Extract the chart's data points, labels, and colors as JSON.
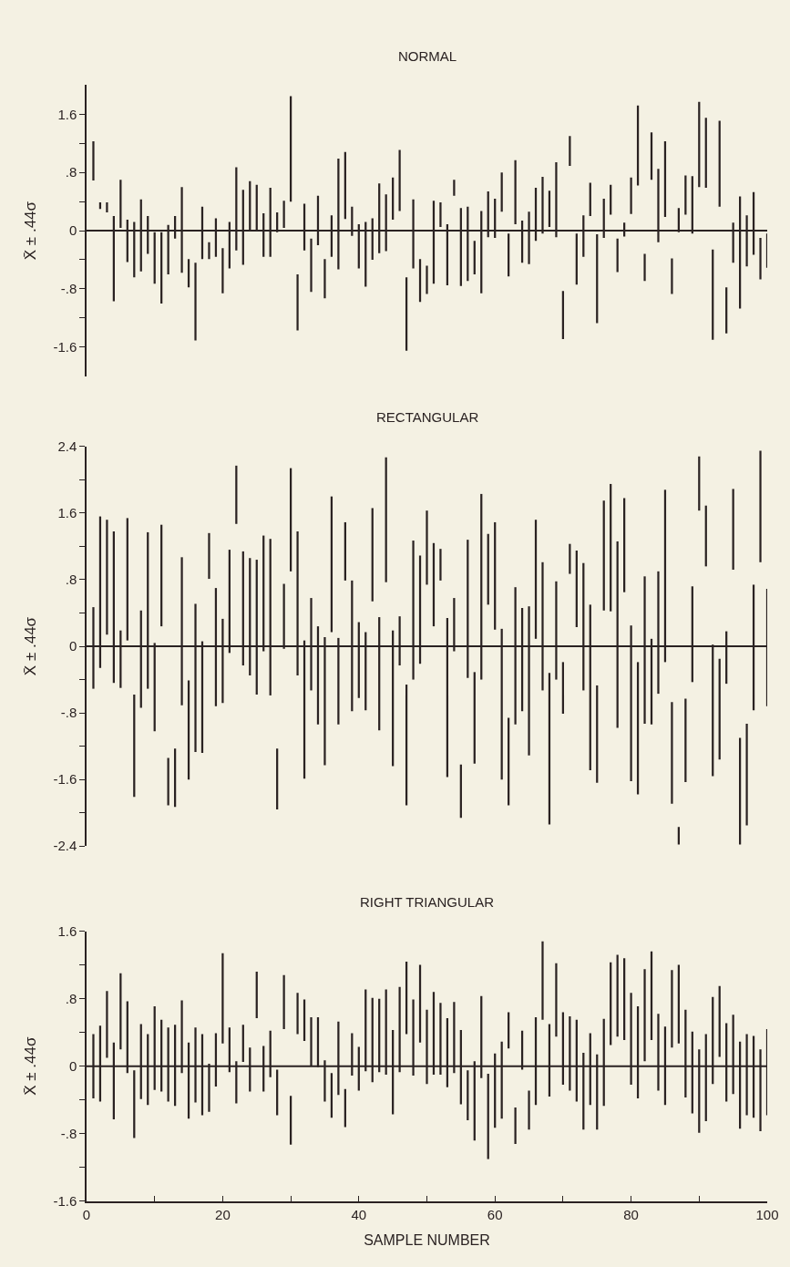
{
  "chart_data": [
    {
      "type": "bar",
      "title": "NORMAL",
      "ylabel": "X̄ ± .44σ",
      "color": "#2a2222",
      "tick_labels": "y",
      "xlim": [
        0,
        100
      ],
      "ylim": [
        -2.0,
        2.0
      ],
      "yticks": [
        {
          "value": -1.6,
          "label": "-1.6"
        },
        {
          "value": -1.2,
          "label": null
        },
        {
          "value": -0.8,
          "label": "-.8"
        },
        {
          "value": -0.4,
          "label": null
        },
        0,
        {
          "value": 0.4,
          "label": null
        },
        {
          "value": 0.8,
          "label": ".8"
        },
        {
          "value": 1.2,
          "label": null
        },
        {
          "value": 1.6,
          "label": "1.6"
        }
      ],
      "grid": false,
      "ref_lines": [
        {
          "axis": "y",
          "value": 0,
          "color": "#2a2222"
        }
      ],
      "x": [
        1,
        2,
        3,
        4,
        5,
        6,
        7,
        8,
        9,
        10,
        11,
        12,
        13,
        14,
        15,
        16,
        17,
        18,
        19,
        20,
        21,
        22,
        23,
        24,
        25,
        26,
        27,
        28,
        29,
        30,
        31,
        32,
        33,
        34,
        35,
        36,
        37,
        38,
        39,
        40,
        41,
        42,
        43,
        44,
        45,
        46,
        47,
        48,
        49,
        50,
        51,
        52,
        53,
        54,
        55,
        56,
        57,
        58,
        59,
        60,
        61,
        62,
        63,
        64,
        65,
        66,
        67,
        68,
        69,
        70,
        71,
        72,
        73,
        74,
        75,
        76,
        77,
        78,
        79,
        80,
        81,
        82,
        83,
        84,
        85,
        86,
        87,
        88,
        89,
        90,
        91,
        92,
        93,
        94,
        95,
        96,
        97,
        98,
        99,
        100
      ],
      "base": [
        0.69,
        0.3,
        0.25,
        -0.97,
        0.04,
        -0.43,
        -0.64,
        -0.56,
        -0.32,
        -0.73,
        -1.0,
        -0.6,
        -0.11,
        -0.58,
        -0.78,
        -1.51,
        -0.39,
        -0.39,
        -0.36,
        -0.86,
        -0.52,
        -0.27,
        -0.47,
        -0.01,
        -0.01,
        -0.36,
        -0.36,
        -0.02,
        0.04,
        0.4,
        -1.37,
        -0.27,
        -0.84,
        -0.2,
        -0.93,
        -0.36,
        -0.53,
        0.16,
        -0.07,
        -0.52,
        -0.77,
        -0.4,
        -0.31,
        -0.28,
        0.15,
        0.27,
        -1.65,
        -0.52,
        -0.98,
        -0.87,
        -0.73,
        0.05,
        -0.75,
        0.48,
        -0.76,
        -0.69,
        -0.6,
        -0.86,
        -0.09,
        -0.1,
        0.26,
        -0.63,
        0.09,
        -0.44,
        -0.46,
        -0.14,
        -0.04,
        0.05,
        -0.09,
        -1.49,
        0.89,
        -0.74,
        -0.36,
        0.2,
        -1.27,
        -0.1,
        0.22,
        -0.57,
        -0.08,
        0.23,
        0.62,
        -0.69,
        0.7,
        -0.16,
        0.19,
        -0.87,
        -0.02,
        0.22,
        -0.04,
        0.6,
        0.59,
        -1.5,
        0.33,
        -1.41,
        -0.44,
        -1.07,
        -0.49,
        -0.33,
        -0.67,
        -0.51
      ],
      "values": [
        0.54,
        0.09,
        0.14,
        1.17,
        0.66,
        0.58,
        0.76,
        0.99,
        0.52,
        0.71,
        0.98,
        0.68,
        0.31,
        1.18,
        0.39,
        1.07,
        0.72,
        0.23,
        0.53,
        0.62,
        0.64,
        1.14,
        1.03,
        0.69,
        0.64,
        0.6,
        0.95,
        0.27,
        0.37,
        1.45,
        0.77,
        0.64,
        0.73,
        0.68,
        0.54,
        0.57,
        1.52,
        0.92,
        0.4,
        0.61,
        0.89,
        0.57,
        0.96,
        0.78,
        0.58,
        0.84,
        1.01,
        0.95,
        0.59,
        0.39,
        1.14,
        0.34,
        0.84,
        0.22,
        1.07,
        1.02,
        0.46,
        1.13,
        0.63,
        0.54,
        0.54,
        0.59,
        0.88,
        0.58,
        0.72,
        0.73,
        0.78,
        0.5,
        1.03,
        0.66,
        0.41,
        0.7,
        0.57,
        0.46,
        1.22,
        0.54,
        0.41,
        0.46,
        0.19,
        0.5,
        1.1,
        0.37,
        0.65,
        1.01,
        1.04,
        0.49,
        0.33,
        0.54,
        0.79,
        1.17,
        0.96,
        1.24,
        1.18,
        0.63,
        0.55,
        1.54,
        0.7,
        0.86,
        0.57,
        0.47
      ]
    },
    {
      "type": "bar",
      "title": "RECTANGULAR",
      "ylabel": "X̄ ± .44σ",
      "color": "#2a2222",
      "tick_labels": "y",
      "xlim": [
        0,
        100
      ],
      "ylim": [
        -2.4,
        2.4
      ],
      "yticks": [
        {
          "value": -2.4,
          "label": "-2.4"
        },
        {
          "value": -2.0,
          "label": null
        },
        {
          "value": -1.6,
          "label": "-1.6"
        },
        {
          "value": -1.2,
          "label": null
        },
        {
          "value": -0.8,
          "label": "-.8"
        },
        {
          "value": -0.4,
          "label": null
        },
        0,
        {
          "value": 0.4,
          "label": null
        },
        {
          "value": 0.8,
          "label": ".8"
        },
        {
          "value": 1.2,
          "label": null
        },
        {
          "value": 1.6,
          "label": "1.6"
        },
        {
          "value": 2.0,
          "label": null
        },
        {
          "value": 2.4,
          "label": "2.4"
        }
      ],
      "grid": false,
      "ref_lines": [
        {
          "axis": "y",
          "value": 0,
          "color": "#2a2222"
        }
      ],
      "x": [
        1,
        2,
        3,
        4,
        5,
        6,
        7,
        8,
        9,
        10,
        11,
        12,
        13,
        14,
        15,
        16,
        17,
        18,
        19,
        20,
        21,
        22,
        23,
        24,
        25,
        26,
        27,
        28,
        29,
        30,
        31,
        32,
        33,
        34,
        35,
        36,
        37,
        38,
        39,
        40,
        41,
        42,
        43,
        44,
        45,
        46,
        47,
        48,
        49,
        50,
        51,
        52,
        53,
        54,
        55,
        56,
        57,
        58,
        59,
        60,
        61,
        62,
        63,
        64,
        65,
        66,
        67,
        68,
        69,
        70,
        71,
        72,
        73,
        74,
        75,
        76,
        77,
        78,
        79,
        80,
        81,
        82,
        83,
        84,
        85,
        86,
        87,
        88,
        89,
        90,
        91,
        92,
        93,
        94,
        95,
        96,
        97,
        98,
        99,
        100
      ],
      "base": [
        -0.51,
        -0.26,
        0.14,
        -0.44,
        -0.5,
        0.07,
        -1.81,
        -0.74,
        -0.51,
        -1.02,
        0.24,
        -1.91,
        -1.93,
        -0.71,
        -1.6,
        -1.27,
        -1.28,
        0.81,
        -0.72,
        -0.68,
        -0.08,
        1.47,
        -0.23,
        -0.35,
        -0.58,
        -0.06,
        -0.59,
        -1.96,
        -0.03,
        0.9,
        -0.35,
        -1.59,
        -0.53,
        -0.94,
        -1.43,
        0.17,
        -0.94,
        0.79,
        -0.78,
        -0.62,
        -0.77,
        0.54,
        -1.01,
        0.77,
        -1.44,
        -0.23,
        -1.91,
        -0.4,
        -0.21,
        0.74,
        0.24,
        0.79,
        -1.57,
        -0.06,
        -2.06,
        -0.38,
        -1.41,
        -0.4,
        0.5,
        0.2,
        -1.6,
        -1.91,
        -0.94,
        -0.78,
        -1.31,
        0.09,
        -0.53,
        -2.14,
        -0.4,
        -0.81,
        0.87,
        0.23,
        -0.53,
        -1.49,
        -1.64,
        0.43,
        0.42,
        -0.98,
        0.65,
        -1.62,
        -1.78,
        -0.93,
        -0.94,
        -0.57,
        -0.19,
        -1.89,
        -2.38,
        -1.63,
        -0.43,
        1.63,
        0.96,
        -1.56,
        -1.36,
        -0.45,
        0.92,
        -2.38,
        -2.15,
        -0.77,
        1.01,
        -0.72
      ],
      "values": [
        0.98,
        1.82,
        1.38,
        1.82,
        0.69,
        1.47,
        1.23,
        1.17,
        1.88,
        1.06,
        1.22,
        0.57,
        0.7,
        1.78,
        1.19,
        1.78,
        1.34,
        0.55,
        1.42,
        1.01,
        1.24,
        0.7,
        1.37,
        1.41,
        1.62,
        1.39,
        1.88,
        0.73,
        0.78,
        1.24,
        1.73,
        1.66,
        1.11,
        1.18,
        1.54,
        1.63,
        1.04,
        0.7,
        1.57,
        0.91,
        0.94,
        1.12,
        1.36,
        1.5,
        1.63,
        0.59,
        1.45,
        1.67,
        1.3,
        0.89,
        1.0,
        0.38,
        1.91,
        0.64,
        0.64,
        1.66,
        1.1,
        2.23,
        0.85,
        1.29,
        1.81,
        1.05,
        1.65,
        1.24,
        1.79,
        1.43,
        1.54,
        1.82,
        1.18,
        0.62,
        0.36,
        0.92,
        1.53,
        1.99,
        1.17,
        1.32,
        1.53,
        2.24,
        1.13,
        1.87,
        1.59,
        1.77,
        1.03,
        1.47,
        2.07,
        1.22,
        0.21,
        1.0,
        1.15,
        0.65,
        0.73,
        1.58,
        1.21,
        0.63,
        0.97,
        1.28,
        1.22,
        1.51,
        1.34,
        1.41
      ]
    },
    {
      "type": "bar",
      "title": "RIGHT TRIANGULAR",
      "xlabel": "SAMPLE NUMBER",
      "ylabel": "X̄ ± .44σ",
      "color": "#2a2222",
      "xlim": [
        0,
        100
      ],
      "xticks": [
        0,
        {
          "value": 10,
          "label": null
        },
        20,
        {
          "value": 30,
          "label": null
        },
        40,
        {
          "value": 50,
          "label": null
        },
        60,
        {
          "value": 70,
          "label": null
        },
        80,
        {
          "value": 90,
          "label": null
        },
        100
      ],
      "ylim": [
        -1.6,
        1.6
      ],
      "yticks": [
        {
          "value": -1.6,
          "label": "-1.6"
        },
        {
          "value": -1.2,
          "label": null
        },
        {
          "value": -0.8,
          "label": "-.8"
        },
        {
          "value": -0.4,
          "label": null
        },
        0,
        {
          "value": 0.4,
          "label": null
        },
        {
          "value": 0.8,
          "label": ".8"
        },
        {
          "value": 1.2,
          "label": null
        },
        {
          "value": 1.6,
          "label": "1.6"
        }
      ],
      "grid": false,
      "ref_lines": [
        {
          "axis": "y",
          "value": 0,
          "color": "#2a2222"
        }
      ],
      "x": [
        1,
        2,
        3,
        4,
        5,
        6,
        7,
        8,
        9,
        10,
        11,
        12,
        13,
        14,
        15,
        16,
        17,
        18,
        19,
        20,
        21,
        22,
        23,
        24,
        25,
        26,
        27,
        28,
        29,
        30,
        31,
        32,
        33,
        34,
        35,
        36,
        37,
        38,
        39,
        40,
        41,
        42,
        43,
        44,
        45,
        46,
        47,
        48,
        49,
        50,
        51,
        52,
        53,
        54,
        55,
        56,
        57,
        58,
        59,
        60,
        61,
        62,
        63,
        64,
        65,
        66,
        67,
        68,
        69,
        70,
        71,
        72,
        73,
        74,
        75,
        76,
        77,
        78,
        79,
        80,
        81,
        82,
        83,
        84,
        85,
        86,
        87,
        88,
        89,
        90,
        91,
        92,
        93,
        94,
        95,
        96,
        97,
        98,
        99,
        100
      ],
      "base": [
        -0.38,
        -0.42,
        0.1,
        -0.63,
        0.2,
        -0.08,
        -0.85,
        -0.39,
        -0.46,
        -0.28,
        -0.3,
        -0.42,
        -0.47,
        -0.08,
        -0.62,
        -0.43,
        -0.58,
        -0.54,
        -0.24,
        0.27,
        -0.07,
        -0.44,
        0.05,
        -0.3,
        0.57,
        -0.3,
        -0.13,
        -0.58,
        0.44,
        -0.93,
        0.38,
        0.3,
        0.0,
        -0.01,
        -0.42,
        -0.61,
        -0.34,
        -0.72,
        -0.11,
        -0.29,
        -0.06,
        -0.19,
        -0.07,
        -0.1,
        -0.57,
        -0.07,
        0.38,
        -0.11,
        0.28,
        -0.21,
        -0.1,
        -0.1,
        -0.25,
        -0.08,
        -0.45,
        -0.64,
        -0.88,
        -0.14,
        -1.1,
        -0.73,
        -0.62,
        0.21,
        -0.92,
        -0.04,
        -0.75,
        -0.46,
        0.55,
        -0.36,
        0.35,
        -0.22,
        -0.29,
        -0.42,
        -0.75,
        -0.46,
        -0.75,
        -0.47,
        0.25,
        0.35,
        0.31,
        -0.22,
        -0.38,
        0.06,
        0.31,
        -0.29,
        -0.46,
        0.22,
        0.27,
        -0.37,
        -0.56,
        -0.79,
        -0.65,
        -0.21,
        0.11,
        -0.42,
        -0.33,
        -0.74,
        -0.58,
        -0.61,
        -0.77,
        -0.58
      ],
      "values": [
        0.76,
        0.9,
        0.79,
        0.91,
        0.9,
        0.85,
        0.8,
        0.89,
        0.84,
        0.99,
        0.85,
        0.88,
        0.96,
        0.86,
        0.9,
        0.89,
        0.96,
        0.57,
        0.63,
        1.07,
        0.53,
        0.5,
        0.44,
        0.52,
        0.55,
        0.54,
        0.55,
        0.54,
        0.64,
        0.58,
        0.49,
        0.49,
        0.58,
        0.59,
        0.49,
        0.53,
        0.87,
        0.45,
        0.5,
        0.52,
        0.97,
        1.0,
        0.87,
        1.01,
        1.0,
        1.01,
        0.86,
        0.9,
        0.92,
        0.88,
        0.98,
        0.85,
        0.82,
        0.84,
        0.88,
        0.59,
        0.94,
        0.97,
        1.01,
        0.88,
        0.91,
        0.43,
        0.43,
        0.46,
        0.46,
        1.04,
        0.93,
        0.86,
        0.87,
        0.86,
        0.88,
        0.97,
        0.91,
        0.85,
        0.89,
        1.03,
        0.98,
        0.97,
        0.97,
        1.09,
        1.09,
        1.09,
        1.05,
        0.91,
        0.93,
        0.92,
        0.93,
        1.04,
        0.97,
        0.99,
        1.03,
        1.03,
        0.84,
        0.93,
        0.94,
        1.03,
        0.96,
        0.97,
        0.97,
        1.02
      ]
    }
  ]
}
